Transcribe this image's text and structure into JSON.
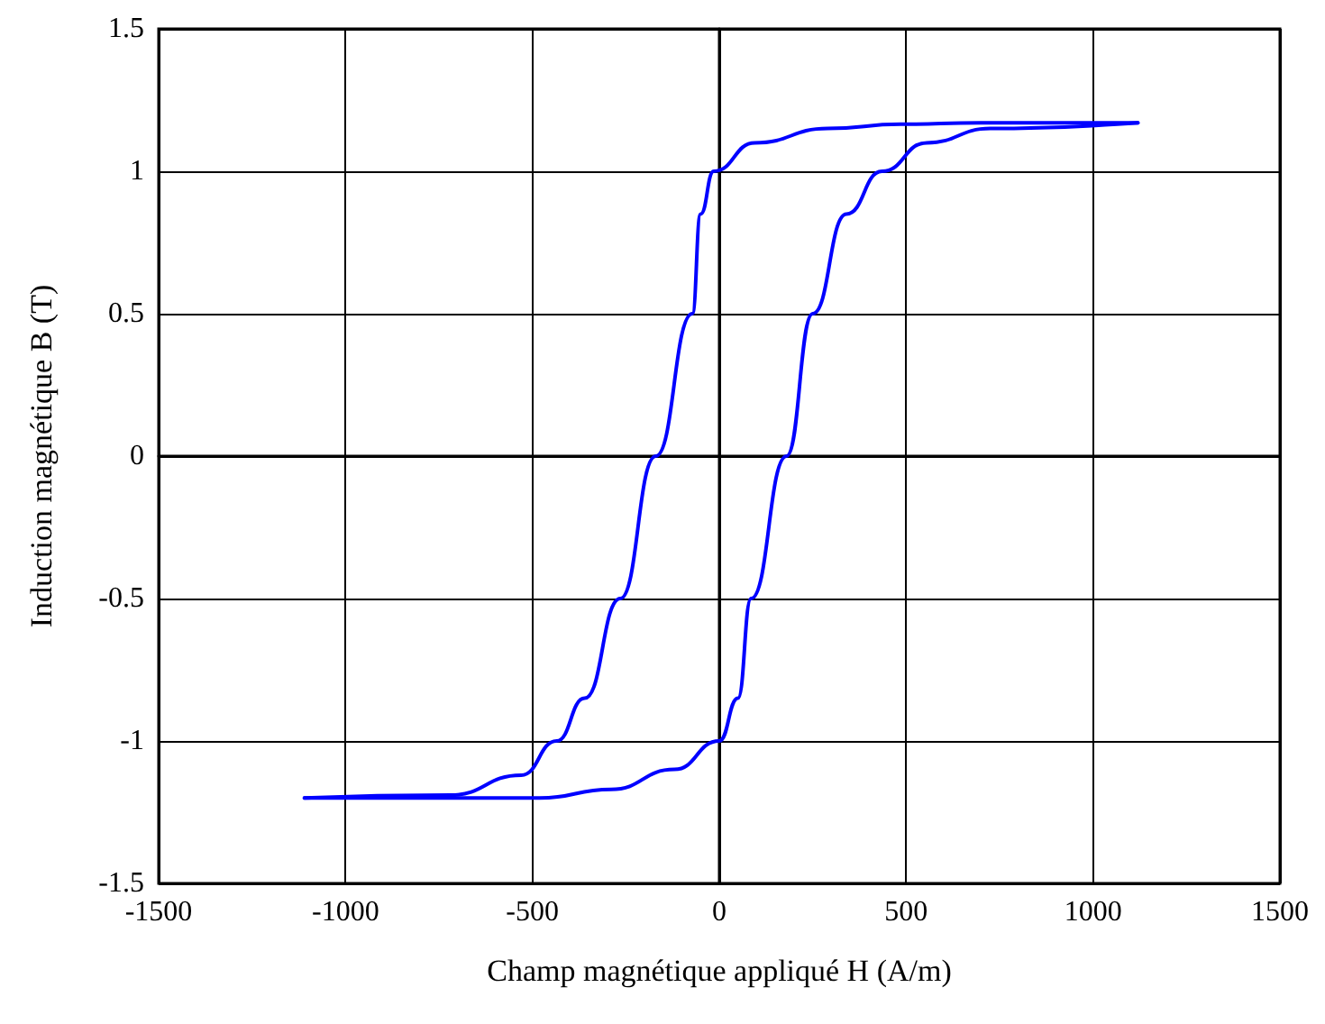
{
  "chart_data": {
    "type": "line",
    "xlabel": "Champ magnétique appliqué H (A/m)",
    "ylabel": "Induction magnétique B (T)",
    "series": [
      {
        "color": "#0000ff",
        "x": [
          1120,
          700,
          485,
          290,
          95,
          -15,
          -50,
          -72,
          -170,
          -265,
          -360,
          -435,
          -530,
          -720,
          -1110
        ],
        "values": [
          1.17,
          1.17,
          1.165,
          1.15,
          1.1,
          1.0,
          0.85,
          0.5,
          0,
          -0.5,
          -0.85,
          -1.0,
          -1.12,
          -1.19,
          -1.2
        ]
      },
      {
        "color": "#0000ff",
        "x": [
          -1110,
          -700,
          -480,
          -290,
          -120,
          0,
          50,
          85,
          180,
          250,
          340,
          435,
          555,
          725,
          1120
        ],
        "values": [
          -1.2,
          -1.2,
          -1.2,
          -1.17,
          -1.1,
          -1.0,
          -0.85,
          -0.5,
          0,
          0.5,
          0.85,
          1.0,
          1.1,
          1.15,
          1.17
        ]
      }
    ],
    "xlim": [
      -1500,
      1500
    ],
    "xticks": [
      -1500,
      -1000,
      -500,
      0,
      500,
      1000,
      1500
    ],
    "ylim": [
      -1.5,
      1.5
    ],
    "yticks": [
      -1.5,
      -1,
      -0.5,
      0,
      0.5,
      1,
      1.5
    ],
    "grid": true,
    "marker": "none",
    "line_style": "solid"
  }
}
